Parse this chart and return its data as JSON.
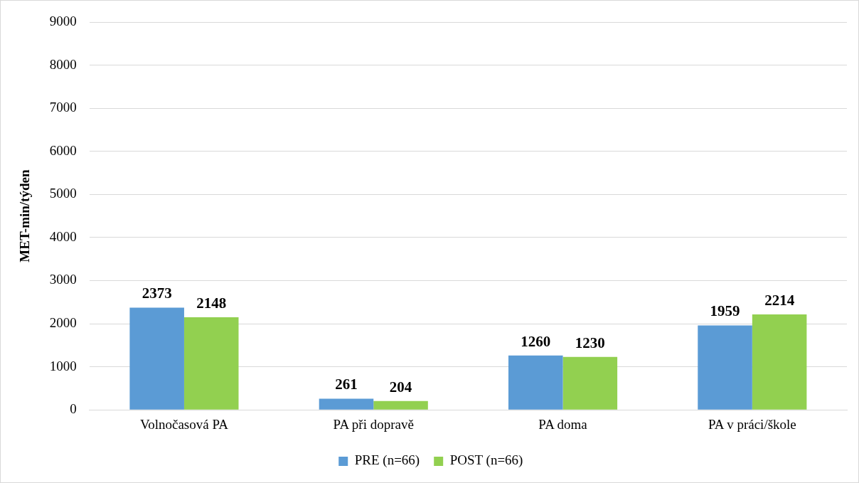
{
  "chart_data": {
    "type": "bar",
    "ylabel": "MET-min/týden",
    "categories": [
      "Volnočasová PA",
      "PA při dopravě",
      "PA doma",
      "PA v práci/škole"
    ],
    "series": [
      {
        "name": "PRE (n=66)",
        "color": "#5b9bd5",
        "values": [
          2373,
          261,
          1260,
          1959
        ]
      },
      {
        "name": "POST (n=66)",
        "color": "#92d050",
        "values": [
          2148,
          204,
          1230,
          2214
        ]
      }
    ],
    "ylim": [
      0,
      9000
    ],
    "yticks": [
      0,
      1000,
      2000,
      3000,
      4000,
      5000,
      6000,
      7000,
      8000,
      9000
    ],
    "grid": "y",
    "legend": "bottom",
    "data_labels": true
  }
}
